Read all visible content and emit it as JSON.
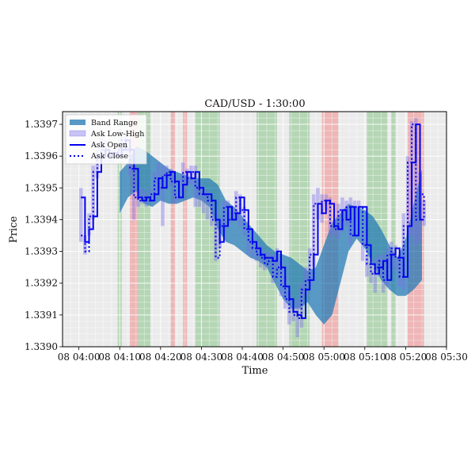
{
  "chart_data": {
    "type": "line",
    "title": "CAD/USD - 1:30:00",
    "xlabel": "Time",
    "ylabel": "Price",
    "x_range": [
      "03:56",
      "05:30"
    ],
    "ylim": [
      1.339,
      1.33974
    ],
    "grid": true,
    "legend_placement": "top-left",
    "x_tick_labels": [
      "08 04:00",
      "08 04:10",
      "08 04:20",
      "08 04:30",
      "08 04:40",
      "08 04:50",
      "08 05:00",
      "08 05:10",
      "08 05:20",
      "08 05:30"
    ],
    "x_tick_minutes": [
      240,
      250,
      260,
      270,
      280,
      290,
      300,
      310,
      320,
      330
    ],
    "y_tick_labels": [
      "1.3390",
      "1.3391",
      "1.3392",
      "1.3393",
      "1.3394",
      "1.3395",
      "1.3396",
      "1.3397"
    ],
    "y_tick_values": [
      1.339,
      1.3391,
      1.3392,
      1.3393,
      1.3394,
      1.3395,
      1.3396,
      1.3397
    ],
    "legend": [
      "Band Range",
      "Ask Low-High",
      "Ask Open",
      "Ask Close"
    ],
    "colors": {
      "band": "#1f77b4",
      "low_high": "#7b6fe8",
      "open": "#0000ee",
      "close": "#0000ee",
      "green_zone": "#88c488",
      "red_zone": "#f08a8a",
      "plot_bg": "#ebebeb"
    },
    "shaded_zones": [
      {
        "start": 249.5,
        "end": 250.5,
        "color": "green"
      },
      {
        "start": 252.5,
        "end": 254.5,
        "color": "red"
      },
      {
        "start": 254.5,
        "end": 257.5,
        "color": "green"
      },
      {
        "start": 262.5,
        "end": 263.5,
        "color": "red"
      },
      {
        "start": 265.5,
        "end": 266.5,
        "color": "red"
      },
      {
        "start": 268.5,
        "end": 274.5,
        "color": "green"
      },
      {
        "start": 283.5,
        "end": 288.5,
        "color": "green"
      },
      {
        "start": 291.5,
        "end": 296.5,
        "color": "green"
      },
      {
        "start": 299.5,
        "end": 303.5,
        "color": "red"
      },
      {
        "start": 310.5,
        "end": 315.5,
        "color": "green"
      },
      {
        "start": 316.5,
        "end": 317.5,
        "color": "green"
      },
      {
        "start": 320.5,
        "end": 324.5,
        "color": "red"
      }
    ],
    "band_range": [
      {
        "x": 250.0,
        "low": 1.33942,
        "high": 1.33955
      },
      {
        "x": 252.0,
        "low": 1.33947,
        "high": 1.33958
      },
      {
        "x": 254.0,
        "low": 1.33949,
        "high": 1.33963
      },
      {
        "x": 256.0,
        "low": 1.33945,
        "high": 1.33962
      },
      {
        "x": 258.0,
        "low": 1.33944,
        "high": 1.3396
      },
      {
        "x": 260.0,
        "low": 1.33946,
        "high": 1.33958
      },
      {
        "x": 262.0,
        "low": 1.33945,
        "high": 1.33956
      },
      {
        "x": 264.0,
        "low": 1.33945,
        "high": 1.33955
      },
      {
        "x": 266.0,
        "low": 1.33946,
        "high": 1.33954
      },
      {
        "x": 268.0,
        "low": 1.33947,
        "high": 1.33953
      },
      {
        "x": 270.0,
        "low": 1.33946,
        "high": 1.33953
      },
      {
        "x": 272.0,
        "low": 1.33944,
        "high": 1.33953
      },
      {
        "x": 274.0,
        "low": 1.33937,
        "high": 1.33951
      },
      {
        "x": 276.0,
        "low": 1.33933,
        "high": 1.33946
      },
      {
        "x": 278.0,
        "low": 1.33932,
        "high": 1.33944
      },
      {
        "x": 280.0,
        "low": 1.3393,
        "high": 1.33941
      },
      {
        "x": 282.0,
        "low": 1.33928,
        "high": 1.33938
      },
      {
        "x": 284.0,
        "low": 1.33927,
        "high": 1.33935
      },
      {
        "x": 286.0,
        "low": 1.33925,
        "high": 1.33932
      },
      {
        "x": 288.0,
        "low": 1.3392,
        "high": 1.3393
      },
      {
        "x": 290.0,
        "low": 1.33915,
        "high": 1.33929
      },
      {
        "x": 292.0,
        "low": 1.33912,
        "high": 1.33928
      },
      {
        "x": 294.0,
        "low": 1.33912,
        "high": 1.33926
      },
      {
        "x": 296.0,
        "low": 1.33914,
        "high": 1.33924
      },
      {
        "x": 298.0,
        "low": 1.3391,
        "high": 1.33925
      },
      {
        "x": 300.0,
        "low": 1.33907,
        "high": 1.33932
      },
      {
        "x": 302.0,
        "low": 1.3391,
        "high": 1.33939
      },
      {
        "x": 304.0,
        "low": 1.3392,
        "high": 1.33942
      },
      {
        "x": 306.0,
        "low": 1.3393,
        "high": 1.33945
      },
      {
        "x": 308.0,
        "low": 1.33934,
        "high": 1.33944
      },
      {
        "x": 310.0,
        "low": 1.33931,
        "high": 1.33943
      },
      {
        "x": 312.0,
        "low": 1.33926,
        "high": 1.33941
      },
      {
        "x": 314.0,
        "low": 1.33921,
        "high": 1.33937
      },
      {
        "x": 316.0,
        "low": 1.33918,
        "high": 1.33932
      },
      {
        "x": 318.0,
        "low": 1.33916,
        "high": 1.33928
      },
      {
        "x": 320.0,
        "low": 1.33916,
        "high": 1.33934
      },
      {
        "x": 322.0,
        "low": 1.33918,
        "high": 1.33945
      },
      {
        "x": 324.0,
        "low": 1.33921,
        "high": 1.33956
      }
    ],
    "series": [
      {
        "name": "Ask Open",
        "x": [
          240.5,
          241.5,
          242.5,
          243.5,
          244.5,
          245.5,
          246.5,
          247.5,
          248.5,
          249.5,
          250.5,
          251.5,
          252.5,
          253.5,
          254.5,
          255.5,
          256.5,
          257.5,
          258.5,
          259.5,
          260.5,
          261.5,
          262.5,
          263.5,
          264.5,
          265.5,
          266.5,
          267.5,
          268.5,
          269.5,
          270.5,
          271.5,
          272.5,
          273.5,
          274.5,
          275.5,
          276.5,
          277.5,
          278.5,
          279.5,
          280.5,
          281.5,
          282.5,
          283.5,
          284.5,
          285.5,
          286.5,
          287.5,
          288.5,
          289.5,
          290.5,
          291.5,
          292.5,
          293.5,
          294.5,
          295.5,
          296.5,
          297.5,
          298.5,
          299.5,
          300.5,
          301.5,
          302.5,
          303.5,
          304.5,
          305.5,
          306.5,
          307.5,
          308.5,
          309.5,
          310.5,
          311.5,
          312.5,
          313.5,
          314.5,
          315.5,
          316.5,
          317.5,
          318.5,
          319.5,
          320.5,
          321.5,
          322.5,
          323.5,
          324.5
        ],
        "values": [
          1.33947,
          1.33933,
          1.33937,
          1.33941,
          1.33955,
          1.3396,
          1.33962,
          1.3396,
          1.33961,
          1.3396,
          1.33962,
          1.33965,
          1.33962,
          1.33956,
          1.33947,
          1.33946,
          1.33947,
          1.33946,
          1.33948,
          1.33953,
          1.3395,
          1.33954,
          1.33955,
          1.33952,
          1.33947,
          1.33951,
          1.33955,
          1.33953,
          1.33955,
          1.3395,
          1.33948,
          1.33948,
          1.33946,
          1.3394,
          1.33933,
          1.33938,
          1.33944,
          1.3394,
          1.33942,
          1.33947,
          1.33943,
          1.33937,
          1.33933,
          1.33931,
          1.33929,
          1.33928,
          1.33928,
          1.33927,
          1.3393,
          1.33925,
          1.33919,
          1.33915,
          1.33911,
          1.3391,
          1.33909,
          1.33918,
          1.33921,
          1.33929,
          1.33945,
          1.33942,
          1.33946,
          1.33945,
          1.33938,
          1.33937,
          1.33943,
          1.3394,
          1.33944,
          1.33935,
          1.33944,
          1.33944,
          1.33932,
          1.33926,
          1.33923,
          1.33925,
          1.33927,
          1.33921,
          1.33929,
          1.33931,
          1.33928,
          1.33922,
          1.33938,
          1.33958,
          1.3397,
          1.3394,
          1.3394
        ]
      },
      {
        "name": "Ask Close",
        "x": [
          240.5,
          241.5,
          242.5,
          243.5,
          244.5,
          245.5,
          246.5,
          247.5,
          248.5,
          249.5,
          250.5,
          251.5,
          252.5,
          253.5,
          254.5,
          255.5,
          256.5,
          257.5,
          258.5,
          259.5,
          260.5,
          261.5,
          262.5,
          263.5,
          264.5,
          265.5,
          266.5,
          267.5,
          268.5,
          269.5,
          270.5,
          271.5,
          272.5,
          273.5,
          274.5,
          275.5,
          276.5,
          277.5,
          278.5,
          279.5,
          280.5,
          281.5,
          282.5,
          283.5,
          284.5,
          285.5,
          286.5,
          287.5,
          288.5,
          289.5,
          290.5,
          291.5,
          292.5,
          293.5,
          294.5,
          295.5,
          296.5,
          297.5,
          298.5,
          299.5,
          300.5,
          301.5,
          302.5,
          303.5,
          304.5,
          305.5,
          306.5,
          307.5,
          308.5,
          309.5,
          310.5,
          311.5,
          312.5,
          313.5,
          314.5,
          315.5,
          316.5,
          317.5,
          318.5,
          319.5,
          320.5,
          321.5,
          322.5,
          323.5,
          324.5
        ],
        "values": [
          1.33935,
          1.3393,
          1.33941,
          1.33955,
          1.3396,
          1.33962,
          1.3396,
          1.33961,
          1.3396,
          1.33962,
          1.33965,
          1.33962,
          1.33956,
          1.33947,
          1.33946,
          1.33947,
          1.33946,
          1.33948,
          1.33953,
          1.3395,
          1.33954,
          1.33955,
          1.33952,
          1.33947,
          1.33951,
          1.33955,
          1.33953,
          1.33955,
          1.3395,
          1.33948,
          1.33948,
          1.33946,
          1.3394,
          1.33928,
          1.33938,
          1.33944,
          1.3394,
          1.33942,
          1.33947,
          1.33943,
          1.33937,
          1.33933,
          1.33931,
          1.33929,
          1.33928,
          1.33926,
          1.33927,
          1.33922,
          1.33925,
          1.33919,
          1.33915,
          1.33911,
          1.3391,
          1.33909,
          1.33918,
          1.33921,
          1.33929,
          1.33945,
          1.33942,
          1.33946,
          1.33945,
          1.33938,
          1.33937,
          1.33943,
          1.3394,
          1.33944,
          1.33935,
          1.33944,
          1.33944,
          1.33932,
          1.33926,
          1.33923,
          1.33925,
          1.33927,
          1.33921,
          1.33929,
          1.33931,
          1.33928,
          1.33922,
          1.33938,
          1.33958,
          1.3397,
          1.3394,
          1.33948,
          1.3394
        ]
      },
      {
        "name": "Ask Low-High",
        "x": [
          240.5,
          241.5,
          242.5,
          243.5,
          244.5,
          245.5,
          246.5,
          247.5,
          248.5,
          249.5,
          250.5,
          251.5,
          252.5,
          253.5,
          254.5,
          255.5,
          256.5,
          257.5,
          258.5,
          259.5,
          260.5,
          261.5,
          262.5,
          263.5,
          264.5,
          265.5,
          266.5,
          267.5,
          268.5,
          269.5,
          270.5,
          271.5,
          272.5,
          273.5,
          274.5,
          275.5,
          276.5,
          277.5,
          278.5,
          279.5,
          280.5,
          281.5,
          282.5,
          283.5,
          284.5,
          285.5,
          286.5,
          287.5,
          288.5,
          289.5,
          290.5,
          291.5,
          292.5,
          293.5,
          294.5,
          295.5,
          296.5,
          297.5,
          298.5,
          299.5,
          300.5,
          301.5,
          302.5,
          303.5,
          304.5,
          305.5,
          306.5,
          307.5,
          308.5,
          309.5,
          310.5,
          311.5,
          312.5,
          313.5,
          314.5,
          315.5,
          316.5,
          317.5,
          318.5,
          319.5,
          320.5,
          321.5,
          322.5,
          323.5,
          324.5
        ],
        "low": [
          1.33933,
          1.33929,
          1.33935,
          1.3394,
          1.33953,
          1.33958,
          1.33958,
          1.33958,
          1.33958,
          1.33959,
          1.3396,
          1.3396,
          1.33954,
          1.3394,
          1.33944,
          1.33945,
          1.33944,
          1.33945,
          1.33946,
          1.33949,
          1.33938,
          1.33953,
          1.3395,
          1.33945,
          1.33946,
          1.33949,
          1.33951,
          1.33951,
          1.33944,
          1.33944,
          1.33942,
          1.3394,
          1.33938,
          1.33927,
          1.33931,
          1.33936,
          1.33938,
          1.3394,
          1.3394,
          1.33938,
          1.33935,
          1.33929,
          1.33928,
          1.33927,
          1.33925,
          1.33924,
          1.33925,
          1.3392,
          1.33922,
          1.33916,
          1.33912,
          1.33907,
          1.33908,
          1.33903,
          1.33906,
          1.33916,
          1.33919,
          1.33925,
          1.3394,
          1.33939,
          1.33943,
          1.33935,
          1.33935,
          1.33934,
          1.33936,
          1.33938,
          1.33932,
          1.33935,
          1.3394,
          1.33927,
          1.33922,
          1.3392,
          1.33917,
          1.33922,
          1.33917,
          1.33919,
          1.33925,
          1.33924,
          1.33919,
          1.33918,
          1.33935,
          1.33935,
          1.33932,
          1.33933,
          1.33938
        ],
        "high": [
          1.3395,
          1.33935,
          1.33942,
          1.33957,
          1.33962,
          1.33966,
          1.33965,
          1.33962,
          1.33962,
          1.33964,
          1.33966,
          1.33967,
          1.33963,
          1.33958,
          1.33949,
          1.3395,
          1.33949,
          1.3395,
          1.33955,
          1.33958,
          1.33957,
          1.33957,
          1.33956,
          1.33949,
          1.33953,
          1.33958,
          1.33956,
          1.33957,
          1.33957,
          1.33951,
          1.3395,
          1.33949,
          1.33946,
          1.33942,
          1.3394,
          1.33946,
          1.33946,
          1.33944,
          1.33949,
          1.33948,
          1.33944,
          1.33938,
          1.33934,
          1.33933,
          1.33932,
          1.3393,
          1.3393,
          1.33929,
          1.33931,
          1.33927,
          1.33922,
          1.33917,
          1.33913,
          1.33915,
          1.3392,
          1.33925,
          1.33931,
          1.33948,
          1.3395,
          1.33948,
          1.33948,
          1.33947,
          1.3394,
          1.33945,
          1.33947,
          1.33946,
          1.33947,
          1.33946,
          1.33946,
          1.33936,
          1.33929,
          1.33926,
          1.33928,
          1.33929,
          1.33929,
          1.33931,
          1.33933,
          1.33932,
          1.33929,
          1.33942,
          1.3396,
          1.33971,
          1.33972,
          1.33955,
          1.33946
        ]
      }
    ]
  }
}
